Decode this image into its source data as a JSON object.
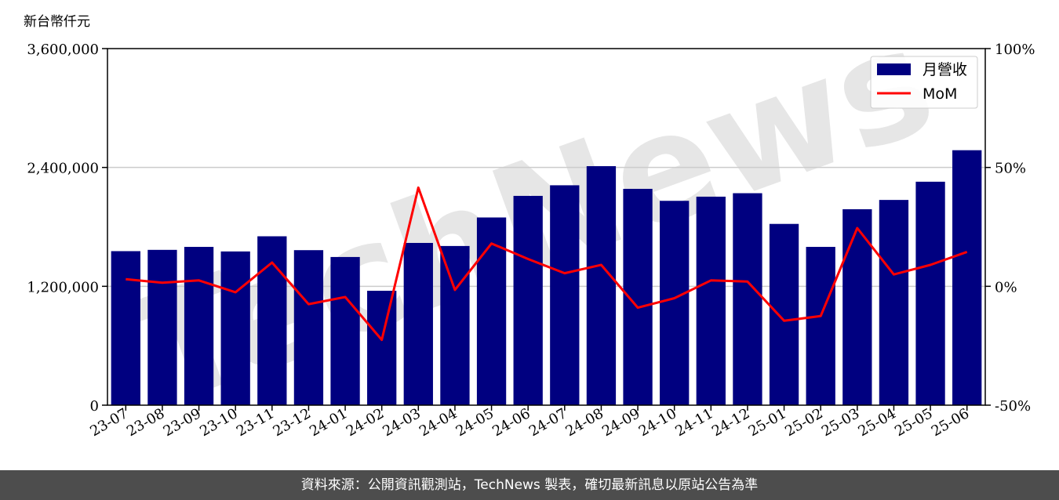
{
  "colors": {
    "bar": "#000080",
    "line": "#ff0000",
    "grid": "#cccccc",
    "footer_bg": "#4d4d4d",
    "watermark": "#e8e8e8"
  },
  "y_unit": "新台幣仟元",
  "watermark_text": "TechNews",
  "footer_text": "資料來源：公開資訊觀測站，TechNews 製表，確切最新訊息以原站公告為準",
  "chart_data": {
    "type": "bar",
    "categories": [
      "23-07",
      "23-08",
      "23-09",
      "23-10",
      "23-11",
      "23-12",
      "24-01",
      "24-02",
      "24-03",
      "24-04",
      "24-05",
      "24-06",
      "24-07",
      "24-08",
      "24-09",
      "24-10",
      "24-11",
      "24-12",
      "25-01",
      "25-02",
      "25-03",
      "25-04",
      "25-05",
      "25-06"
    ],
    "series": [
      {
        "name": "月營收",
        "type": "bar",
        "axis": "left",
        "values": [
          1555000,
          1568000,
          1598000,
          1552000,
          1705000,
          1565000,
          1496000,
          1155000,
          1638000,
          1607000,
          1895000,
          2113000,
          2220000,
          2413000,
          2184000,
          2063000,
          2105000,
          2140000,
          1830000,
          1598000,
          1978000,
          2072000,
          2256000,
          2574000
        ]
      },
      {
        "name": "MoM",
        "type": "line",
        "axis": "right",
        "values": [
          3.0,
          1.5,
          2.5,
          -2.5,
          10.0,
          -7.5,
          -4.5,
          -22.5,
          41.5,
          -1.5,
          18.0,
          11.5,
          5.5,
          9.0,
          -9.0,
          -5.0,
          2.5,
          2.0,
          -14.5,
          -12.5,
          24.5,
          5.0,
          9.0,
          14.5
        ]
      }
    ],
    "y_left": {
      "range": [
        0,
        3600000
      ],
      "ticks": [
        0,
        1200000,
        2400000,
        3600000
      ],
      "tick_labels": [
        "0",
        "1,200,000",
        "2,400,000",
        "3,600,000"
      ]
    },
    "y_right": {
      "range": [
        -50,
        100
      ],
      "ticks": [
        -50,
        0,
        50,
        100
      ],
      "tick_labels": [
        "-50%",
        "0%",
        "50%",
        "100%"
      ]
    },
    "grid": "horizontal",
    "legend": {
      "position": "top-right",
      "entries": [
        "月營收",
        "MoM"
      ]
    }
  }
}
